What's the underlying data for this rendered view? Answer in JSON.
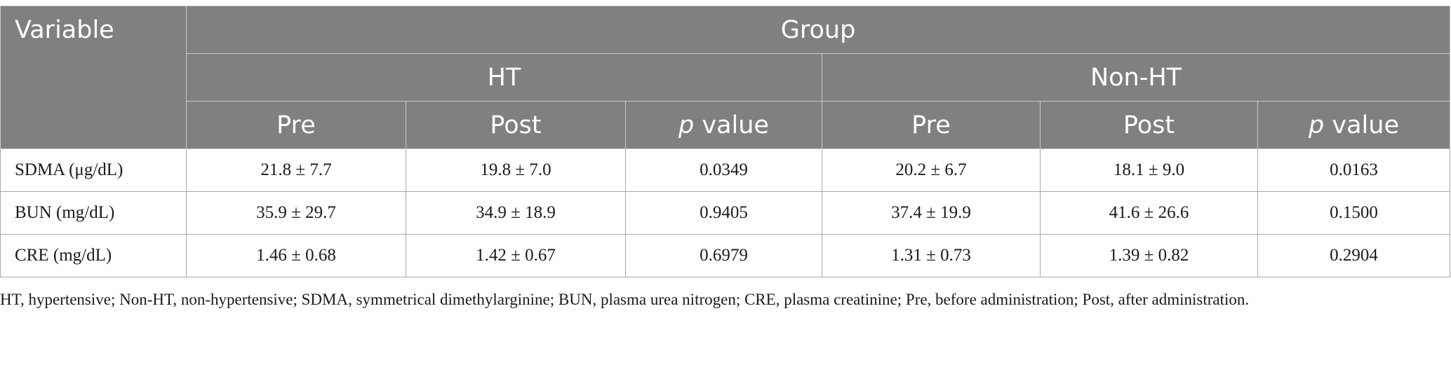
{
  "table": {
    "header": {
      "variable": "Variable",
      "group": "Group",
      "ht": "HT",
      "non_ht": "Non-HT",
      "pre": "Pre",
      "post": "Post",
      "p_italic": "p",
      "p_rest": " value"
    },
    "rows": [
      {
        "variable": "SDMA (μg/dL)",
        "ht_pre": "21.8 ± 7.7",
        "ht_post": "19.8 ± 7.0",
        "ht_p": "0.0349",
        "nonht_pre": "20.2 ± 6.7",
        "nonht_post": "18.1 ± 9.0",
        "nonht_p": "0.0163"
      },
      {
        "variable": "BUN (mg/dL)",
        "ht_pre": "35.9 ± 29.7",
        "ht_post": "34.9 ± 18.9",
        "ht_p": "0.9405",
        "nonht_pre": "37.4 ± 19.9",
        "nonht_post": "41.6 ± 26.6",
        "nonht_p": "0.1500"
      },
      {
        "variable": "CRE (mg/dL)",
        "ht_pre": "1.46 ± 0.68",
        "ht_post": "1.42 ± 0.67",
        "ht_p": "0.6979",
        "nonht_pre": "1.31 ± 0.73",
        "nonht_post": "1.39 ± 0.82",
        "nonht_p": "0.2904"
      }
    ]
  },
  "footnote": "HT, hypertensive; Non-HT, non-hypertensive; SDMA, symmetrical dimethylarginine; BUN, plasma urea nitrogen; CRE, plasma creatinine; Pre, before administration; Post, after administration."
}
